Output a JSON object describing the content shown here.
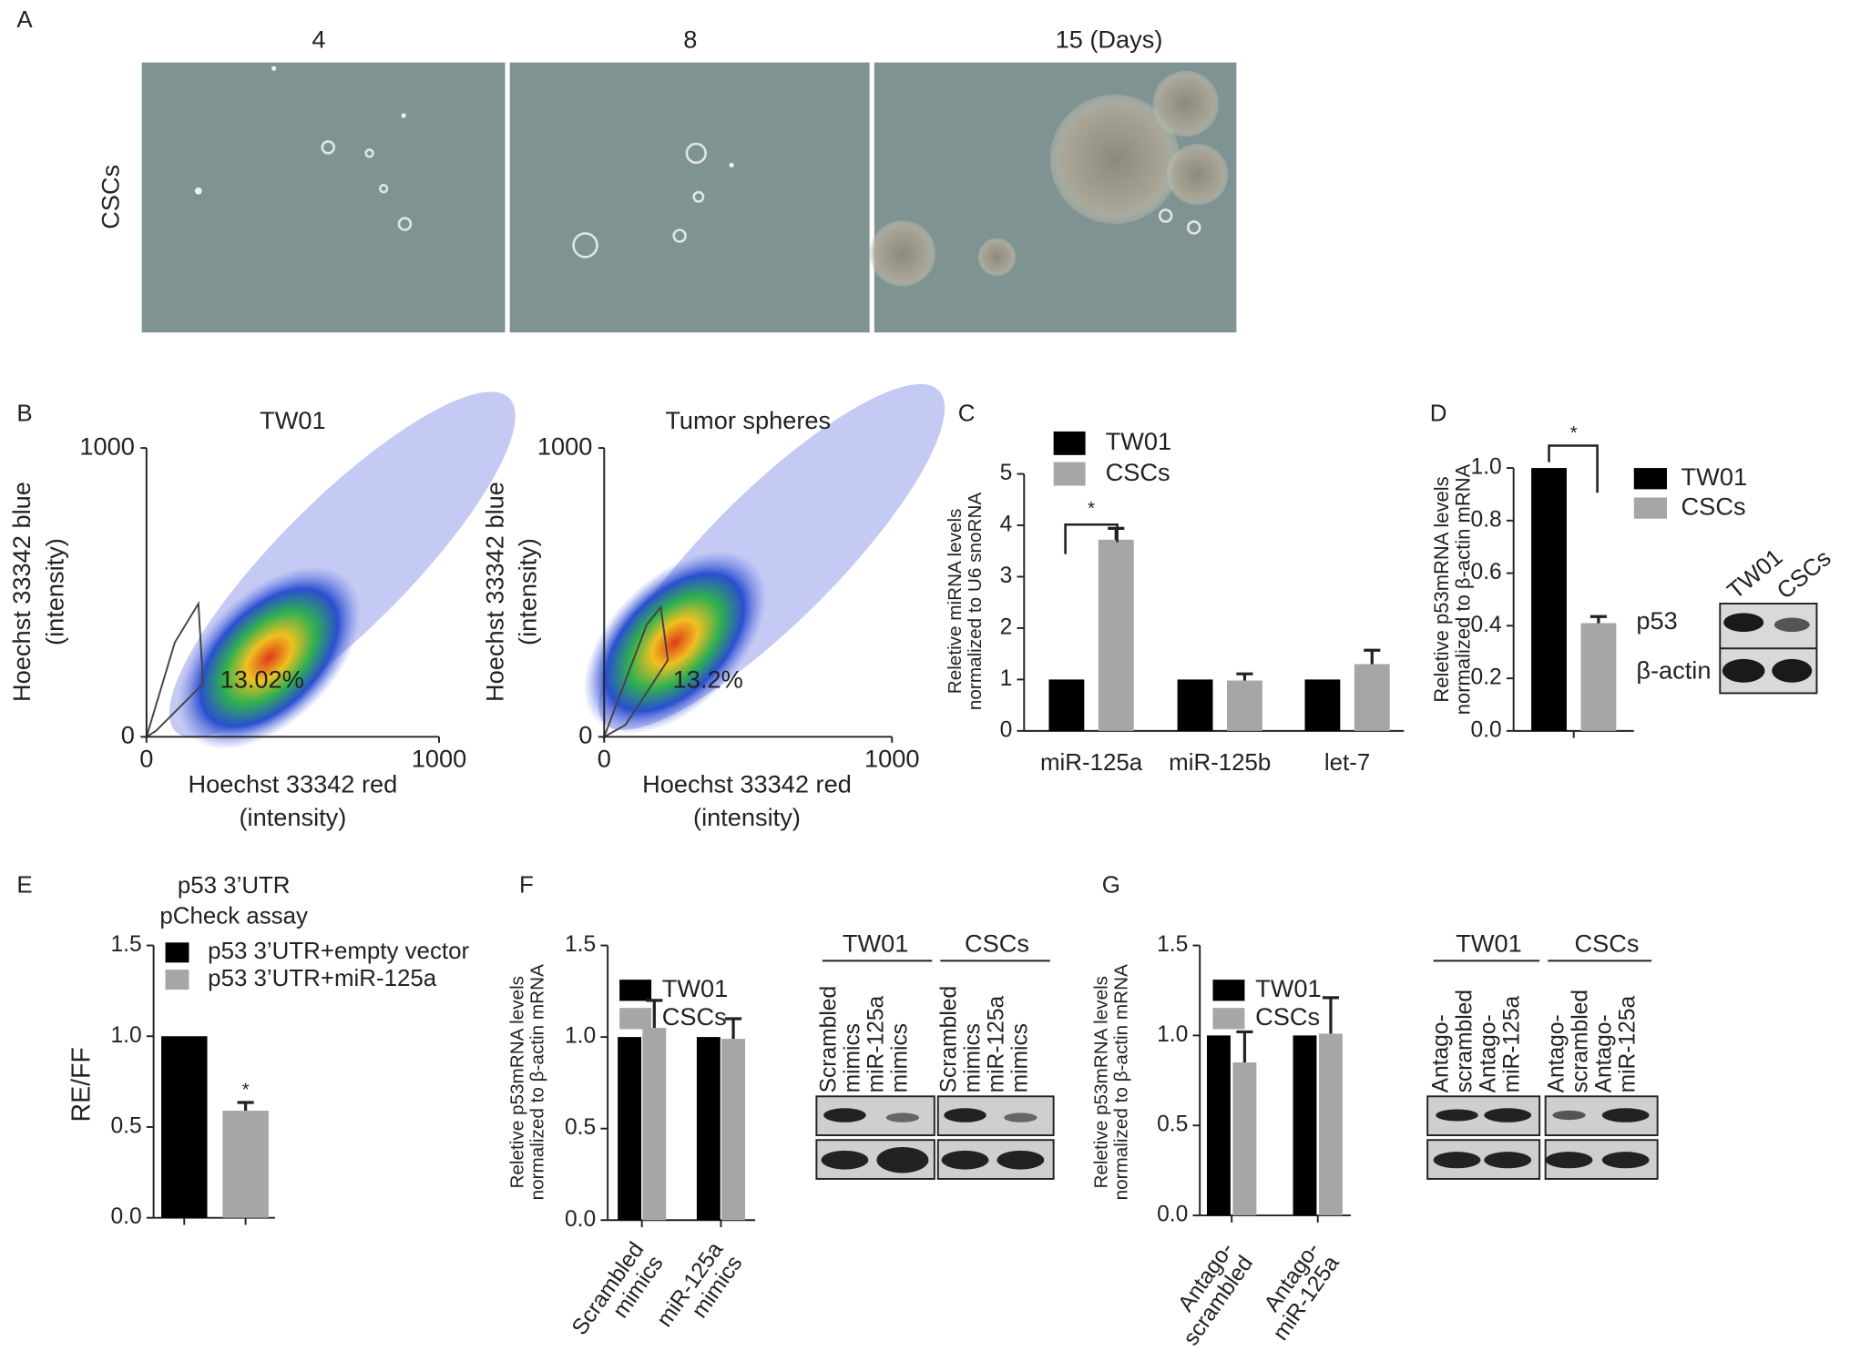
{
  "figure": {
    "panel_labels": [
      "A",
      "B",
      "C",
      "D",
      "E",
      "F",
      "G"
    ]
  },
  "panel_a": {
    "row_label": "CSCs",
    "columns": [
      "4",
      "8",
      "15 (Days)"
    ]
  },
  "chart_data": [
    {
      "type": "density",
      "title": "TW01",
      "x_label": "Hoechst 33342 red\n(intensity)",
      "y_label": "Hoechst 33342 blue\n(intensity)",
      "xlim": [
        0,
        1000
      ],
      "ylim": [
        0,
        1000
      ],
      "xticks": [
        0,
        1000
      ],
      "yticks": [
        0,
        1000
      ],
      "annotation": "13.02%"
    },
    {
      "type": "density",
      "title": "Tumor spheres",
      "x_label": "Hoechst 33342 red\n(intensity)",
      "y_label": "Hoechst 33342 blue\n(intensity)",
      "xlim": [
        0,
        1000
      ],
      "ylim": [
        0,
        1000
      ],
      "xticks": [
        0,
        1000
      ],
      "yticks": [
        0,
        1000
      ],
      "annotation": "13.2%"
    },
    {
      "type": "bar",
      "y_label": "Reletive miRNA levels\nnormalized to U6 snoRNA",
      "categories": [
        "miR-125a",
        "miR-125b",
        "let-7"
      ],
      "series": [
        {
          "name": "TW01",
          "color": "#000000",
          "values": [
            1,
            1,
            1
          ]
        },
        {
          "name": "CSCs",
          "color": "#a6a6a6",
          "values": [
            3.72,
            0.98,
            1.3
          ],
          "errors": [
            0.22,
            0.13,
            0.27
          ]
        }
      ],
      "ylim": [
        0,
        5
      ],
      "yticks": [
        0,
        1,
        2,
        3,
        4,
        5
      ],
      "annotation": "*"
    },
    {
      "type": "bar",
      "y_label": "Reletive p53mRNA levels\nnormalized to β-actin mRNA",
      "categories": [
        null
      ],
      "series": [
        {
          "name": "TW01",
          "color": "#000000",
          "values": [
            1.0
          ]
        },
        {
          "name": "CSCs",
          "color": "#a6a6a6",
          "values": [
            0.41
          ],
          "errors": [
            0.025
          ]
        }
      ],
      "ylim": [
        0,
        1
      ],
      "yticks": [
        {
          "value": 0,
          "label": "0.0"
        },
        0.2,
        0.4,
        0.6,
        0.8,
        {
          "value": 1,
          "label": "1.0"
        }
      ],
      "annotation": "*",
      "blot": {
        "lanes": [
          "TW01",
          "CSCs"
        ],
        "rows": [
          "p53",
          "β-actin"
        ]
      }
    },
    {
      "type": "bar",
      "title": "p53 3’UTR\npCheck assay",
      "y_label": "RE/FF",
      "categories": [
        null
      ],
      "series": [
        {
          "name": "p53 3’UTR+empty vector",
          "color": "#000000",
          "values": [
            1.0
          ]
        },
        {
          "name": "p53 3’UTR+miR-125a",
          "color": "#a6a6a6",
          "values": [
            0.59
          ],
          "errors": [
            0.045
          ]
        }
      ],
      "ylim": [
        0,
        1.5
      ],
      "yticks": [
        {
          "value": 0,
          "label": "0.0"
        },
        0.5,
        {
          "value": 1,
          "label": "1.0"
        },
        1.5
      ],
      "annotation": "*"
    },
    {
      "type": "bar",
      "y_label": "Reletive p53mRNA levels\nnormalized to β-actin mRNA",
      "categories": [
        "Scrambled\nmimics",
        "miR-125a\nmimics"
      ],
      "series": [
        {
          "name": "TW01",
          "color": "#000000",
          "values": [
            1,
            1
          ]
        },
        {
          "name": "CSCs",
          "color": "#a6a6a6",
          "values": [
            1.05,
            0.99
          ],
          "errors": [
            0.15,
            0.11
          ]
        }
      ],
      "ylim": [
        0,
        1.5
      ],
      "yticks": [
        {
          "value": 0,
          "label": "0.0"
        },
        0.5,
        {
          "value": 1,
          "label": "1.0"
        },
        1.5
      ],
      "blot": {
        "groups": [
          "TW01",
          "CSCs"
        ],
        "lanes": [
          "Scrambled\nmimics",
          "miR-125a\nmimics",
          "Scrambled\nmimics",
          "miR-125a\nmimics"
        ]
      }
    },
    {
      "type": "bar",
      "y_label": "Reletive p53mRNA levels\nnormalized to β-actin mRNA",
      "categories": [
        "Antago-\nscrambled",
        "Antago-\nmiR-125a"
      ],
      "series": [
        {
          "name": "TW01",
          "color": "#000000",
          "values": [
            1,
            1
          ]
        },
        {
          "name": "CSCs",
          "color": "#a6a6a6",
          "values": [
            0.85,
            1.01
          ],
          "errors": [
            0.17,
            0.2
          ]
        }
      ],
      "ylim": [
        0,
        1.5
      ],
      "yticks": [
        {
          "value": 0,
          "label": "0.0"
        },
        0.5,
        {
          "value": 1,
          "label": "1.0"
        },
        1.5
      ],
      "blot": {
        "groups": [
          "TW01",
          "CSCs"
        ],
        "lanes": [
          "Antago-\nscrambled",
          "Antago-\nmiR-125a",
          "Antago-\nscrambled",
          "Antago-\nmiR-125a"
        ]
      }
    }
  ]
}
